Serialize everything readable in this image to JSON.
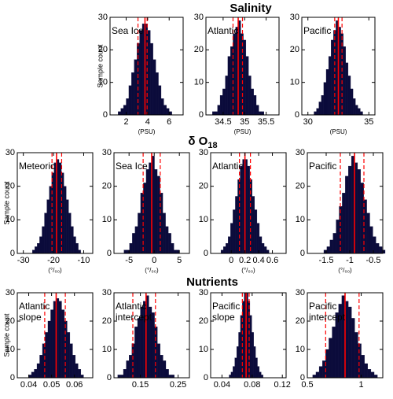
{
  "headings": [
    {
      "text": "Salinity"
    },
    {
      "text": "δ O",
      "subscript": "18"
    },
    {
      "text": "Nutrients"
    }
  ],
  "chart_data": [
    {
      "type": "histogram",
      "title": "Sea Ice",
      "xlabel": "(PSU)",
      "ylabel": "Sample count",
      "color": "#0b0b3b",
      "line_color": "#ff0000",
      "bins": [
        1.25,
        1.5,
        1.75,
        2,
        2.25,
        2.5,
        2.75,
        3,
        3.25,
        3.5,
        3.75,
        4,
        4.25,
        4.5,
        4.75,
        5,
        5.25,
        5.5,
        5.75,
        6,
        6.25
      ],
      "counts": [
        1,
        2,
        3,
        5,
        9,
        13,
        17,
        22,
        26,
        28,
        28,
        26,
        22,
        17,
        13,
        9,
        5,
        3,
        2,
        1
      ],
      "mean": 3.75,
      "interval": [
        3.1,
        3.95
      ],
      "xlim": [
        0.5,
        7.3
      ],
      "ylim": [
        0,
        30
      ],
      "xticks": [
        2,
        4,
        6
      ],
      "yticks": [
        0,
        10,
        20,
        30
      ]
    },
    {
      "type": "histogram",
      "title": "Atlantic",
      "xlabel": "(PSU)",
      "color": "#0b0b3b",
      "line_color": "#ff0000",
      "bins": [
        34.25,
        34.31,
        34.37,
        34.43,
        34.49,
        34.55,
        34.61,
        34.67,
        34.73,
        34.79,
        34.85,
        34.91,
        34.97,
        35.03,
        35.09,
        35.15,
        35.21,
        35.27,
        35.33,
        35.39,
        35.45
      ],
      "counts": [
        1,
        1,
        3,
        6,
        8,
        12,
        18,
        21,
        25,
        27,
        29,
        25,
        23,
        18,
        12,
        8,
        6,
        3,
        1,
        1
      ],
      "mean": 34.85,
      "interval": [
        34.73,
        34.95
      ],
      "xlim": [
        34.1,
        35.8
      ],
      "ylim": [
        0,
        30
      ],
      "xticks": [
        34.5,
        35,
        35.5
      ],
      "yticks": [
        0,
        10,
        20,
        30
      ]
    },
    {
      "type": "histogram",
      "title": "Pacific",
      "xlabel": "(PSU)",
      "color": "#0b0b3b",
      "line_color": "#ff0000",
      "bins": [
        30.5,
        30.7,
        30.9,
        31.1,
        31.3,
        31.5,
        31.7,
        31.9,
        32.1,
        32.3,
        32.5,
        32.7,
        32.9,
        33.1,
        33.3,
        33.5,
        33.7,
        33.9,
        34.1,
        34.3,
        34.5
      ],
      "counts": [
        1,
        2,
        4,
        6,
        10,
        14,
        18,
        23,
        26,
        29,
        27,
        25,
        21,
        16,
        12,
        8,
        5,
        3,
        2,
        1
      ],
      "mean": 32.5,
      "interval": [
        32.2,
        32.8
      ],
      "xlim": [
        29.5,
        35.5
      ],
      "ylim": [
        0,
        30
      ],
      "xticks": [
        30,
        35
      ],
      "yticks": [
        0,
        10,
        20,
        30
      ]
    },
    {
      "type": "histogram",
      "title": "Meteoric",
      "xlabel": "(°/₀₀)",
      "ylabel": "Sample count",
      "color": "#0b0b3b",
      "line_color": "#ff0000",
      "bins": [
        -27,
        -26.2,
        -25.4,
        -24.6,
        -23.8,
        -23,
        -22.2,
        -21.4,
        -20.6,
        -19.8,
        -19,
        -18.2,
        -17.4,
        -16.6,
        -15.8,
        -15,
        -14.2,
        -13.4,
        -12.6,
        -11.8,
        -11
      ],
      "counts": [
        1,
        2,
        3,
        5,
        8,
        12,
        16,
        20,
        24,
        27,
        28,
        27,
        24,
        20,
        16,
        12,
        8,
        5,
        3,
        1
      ],
      "mean": -19,
      "interval": [
        -20.5,
        -17.3
      ],
      "xlim": [
        -32,
        -7
      ],
      "ylim": [
        0,
        30
      ],
      "xticks": [
        -30,
        -20,
        -10
      ],
      "yticks": [
        0,
        10,
        20,
        30
      ]
    },
    {
      "type": "histogram",
      "title": "Sea Ice",
      "xlabel": "(°/₀₀)",
      "color": "#0b0b3b",
      "line_color": "#ff0000",
      "bins": [
        -6,
        -5.45,
        -4.9,
        -4.35,
        -3.8,
        -3.25,
        -2.7,
        -2.15,
        -1.6,
        -1.05,
        -0.5,
        0.05,
        0.6,
        1.15,
        1.7,
        2.25,
        2.8,
        3.35,
        3.9,
        4.45,
        5
      ],
      "counts": [
        1,
        1,
        3,
        6,
        8,
        12,
        18,
        21,
        25,
        27,
        29,
        25,
        23,
        18,
        12,
        8,
        6,
        3,
        1,
        1
      ],
      "mean": -0.5,
      "interval": [
        -2.2,
        1.2
      ],
      "xlim": [
        -8,
        7
      ],
      "ylim": [
        0,
        30
      ],
      "xticks": [
        -5,
        0,
        5
      ],
      "yticks": [
        0,
        10,
        20,
        30
      ]
    },
    {
      "type": "histogram",
      "title": "Atlantic",
      "xlabel": "(°/₀₀)",
      "color": "#0b0b3b",
      "line_color": "#ff0000",
      "bins": [
        -0.15,
        -0.115,
        -0.08,
        -0.045,
        -0.01,
        0.025,
        0.06,
        0.095,
        0.13,
        0.165,
        0.2,
        0.235,
        0.27,
        0.305,
        0.34,
        0.375,
        0.41,
        0.445,
        0.48,
        0.515,
        0.55
      ],
      "counts": [
        1,
        2,
        3,
        5,
        9,
        13,
        17,
        22,
        26,
        28,
        28,
        26,
        22,
        17,
        13,
        9,
        5,
        3,
        2,
        1
      ],
      "mean": 0.2,
      "interval": [
        0.12,
        0.28
      ],
      "xlim": [
        -0.3,
        0.8
      ],
      "ylim": [
        0,
        30
      ],
      "xticks": [
        0,
        0.2,
        0.4,
        0.6
      ],
      "yticks": [
        0,
        10,
        20,
        30
      ]
    },
    {
      "type": "histogram",
      "title": "Pacific",
      "xlabel": "(°/₀₀)",
      "color": "#0b0b3b",
      "line_color": "#ff0000",
      "bins": [
        -1.55,
        -1.485,
        -1.42,
        -1.355,
        -1.29,
        -1.225,
        -1.16,
        -1.095,
        -1.03,
        -0.965,
        -0.9,
        -0.835,
        -0.77,
        -0.705,
        -0.64,
        -0.575,
        -0.51,
        -0.445,
        -0.38,
        -0.315,
        -0.25
      ],
      "counts": [
        1,
        2,
        4,
        6,
        10,
        14,
        18,
        23,
        26,
        29,
        27,
        25,
        21,
        16,
        12,
        8,
        5,
        3,
        2,
        1
      ],
      "mean": -0.9,
      "interval": [
        -1.2,
        -0.7
      ],
      "xlim": [
        -1.9,
        -0.3
      ],
      "ylim": [
        0,
        30
      ],
      "xticks": [
        -1.5,
        -1,
        -0.5
      ],
      "yticks": [
        0,
        10,
        20,
        30
      ]
    },
    {
      "type": "histogram",
      "title": "Atlantic slope",
      "ylabel": "Sample count",
      "color": "#0b0b3b",
      "line_color": "#ff0000",
      "bins": [
        0.04,
        0.0412,
        0.0424,
        0.0436,
        0.0448,
        0.046,
        0.0472,
        0.0484,
        0.0496,
        0.0508,
        0.052,
        0.0532,
        0.0544,
        0.0556,
        0.0568,
        0.058,
        0.0592,
        0.0604,
        0.0616,
        0.0628,
        0.064
      ],
      "counts": [
        1,
        2,
        3,
        5,
        8,
        12,
        16,
        20,
        24,
        27,
        28,
        27,
        24,
        20,
        16,
        12,
        8,
        5,
        3,
        1
      ],
      "mean": 0.052,
      "interval": [
        0.047,
        0.056
      ],
      "xlim": [
        0.035,
        0.068
      ],
      "ylim": [
        0,
        30
      ],
      "xticks": [
        0.04,
        0.05,
        0.06
      ],
      "yticks": [
        0,
        10,
        20,
        30
      ]
    },
    {
      "type": "histogram",
      "title": "Atlantic intercept",
      "color": "#0b0b3b",
      "line_color": "#ff0000",
      "bins": [
        0.09,
        0.0975,
        0.105,
        0.1125,
        0.12,
        0.1275,
        0.135,
        0.1425,
        0.15,
        0.1575,
        0.165,
        0.1725,
        0.18,
        0.1875,
        0.195,
        0.2025,
        0.21,
        0.2175,
        0.225,
        0.2325,
        0.24
      ],
      "counts": [
        1,
        1,
        3,
        6,
        8,
        12,
        18,
        21,
        25,
        27,
        29,
        25,
        23,
        18,
        12,
        8,
        6,
        3,
        1,
        1
      ],
      "mean": 0.165,
      "interval": [
        0.13,
        0.19
      ],
      "xlim": [
        0.08,
        0.28
      ],
      "ylim": [
        0,
        30
      ],
      "xticks": [
        0.15,
        0.25
      ],
      "yticks": [
        0,
        10,
        20,
        30
      ]
    },
    {
      "type": "histogram",
      "title": "Pacific slope",
      "color": "#0b0b3b",
      "line_color": "#ff0000",
      "bins": [
        0.047,
        0.0495,
        0.052,
        0.0545,
        0.057,
        0.0595,
        0.062,
        0.0645,
        0.067,
        0.0695,
        0.072,
        0.0745,
        0.077,
        0.0795,
        0.082,
        0.0845,
        0.087,
        0.0895,
        0.092,
        0.0945,
        0.097
      ],
      "counts": [
        0,
        1,
        2,
        4,
        7,
        11,
        16,
        22,
        27,
        30,
        30,
        27,
        22,
        16,
        11,
        7,
        4,
        2,
        1,
        0
      ],
      "mean": 0.072,
      "interval": [
        0.067,
        0.076
      ],
      "xlim": [
        0.025,
        0.125
      ],
      "ylim": [
        0,
        30
      ],
      "xticks": [
        0.04,
        0.08,
        0.12
      ],
      "yticks": [
        0,
        10,
        20,
        30
      ]
    },
    {
      "type": "histogram",
      "title": "Pacific intercept",
      "color": "#0b0b3b",
      "line_color": "#ff0000",
      "bins": [
        0.55,
        0.58,
        0.61,
        0.64,
        0.67,
        0.7,
        0.73,
        0.76,
        0.79,
        0.82,
        0.85,
        0.88,
        0.91,
        0.94,
        0.97,
        1,
        1.03,
        1.06,
        1.09,
        1.12,
        1.15
      ],
      "counts": [
        1,
        2,
        4,
        6,
        10,
        14,
        18,
        23,
        26,
        29,
        27,
        25,
        21,
        16,
        12,
        8,
        5,
        3,
        2,
        1
      ],
      "mean": 0.85,
      "interval": [
        0.67,
        0.98
      ],
      "xlim": [
        0.5,
        1.2
      ],
      "ylim": [
        0,
        30
      ],
      "xticks": [
        0.5,
        1
      ],
      "yticks": [
        0,
        10,
        20,
        30
      ]
    }
  ]
}
